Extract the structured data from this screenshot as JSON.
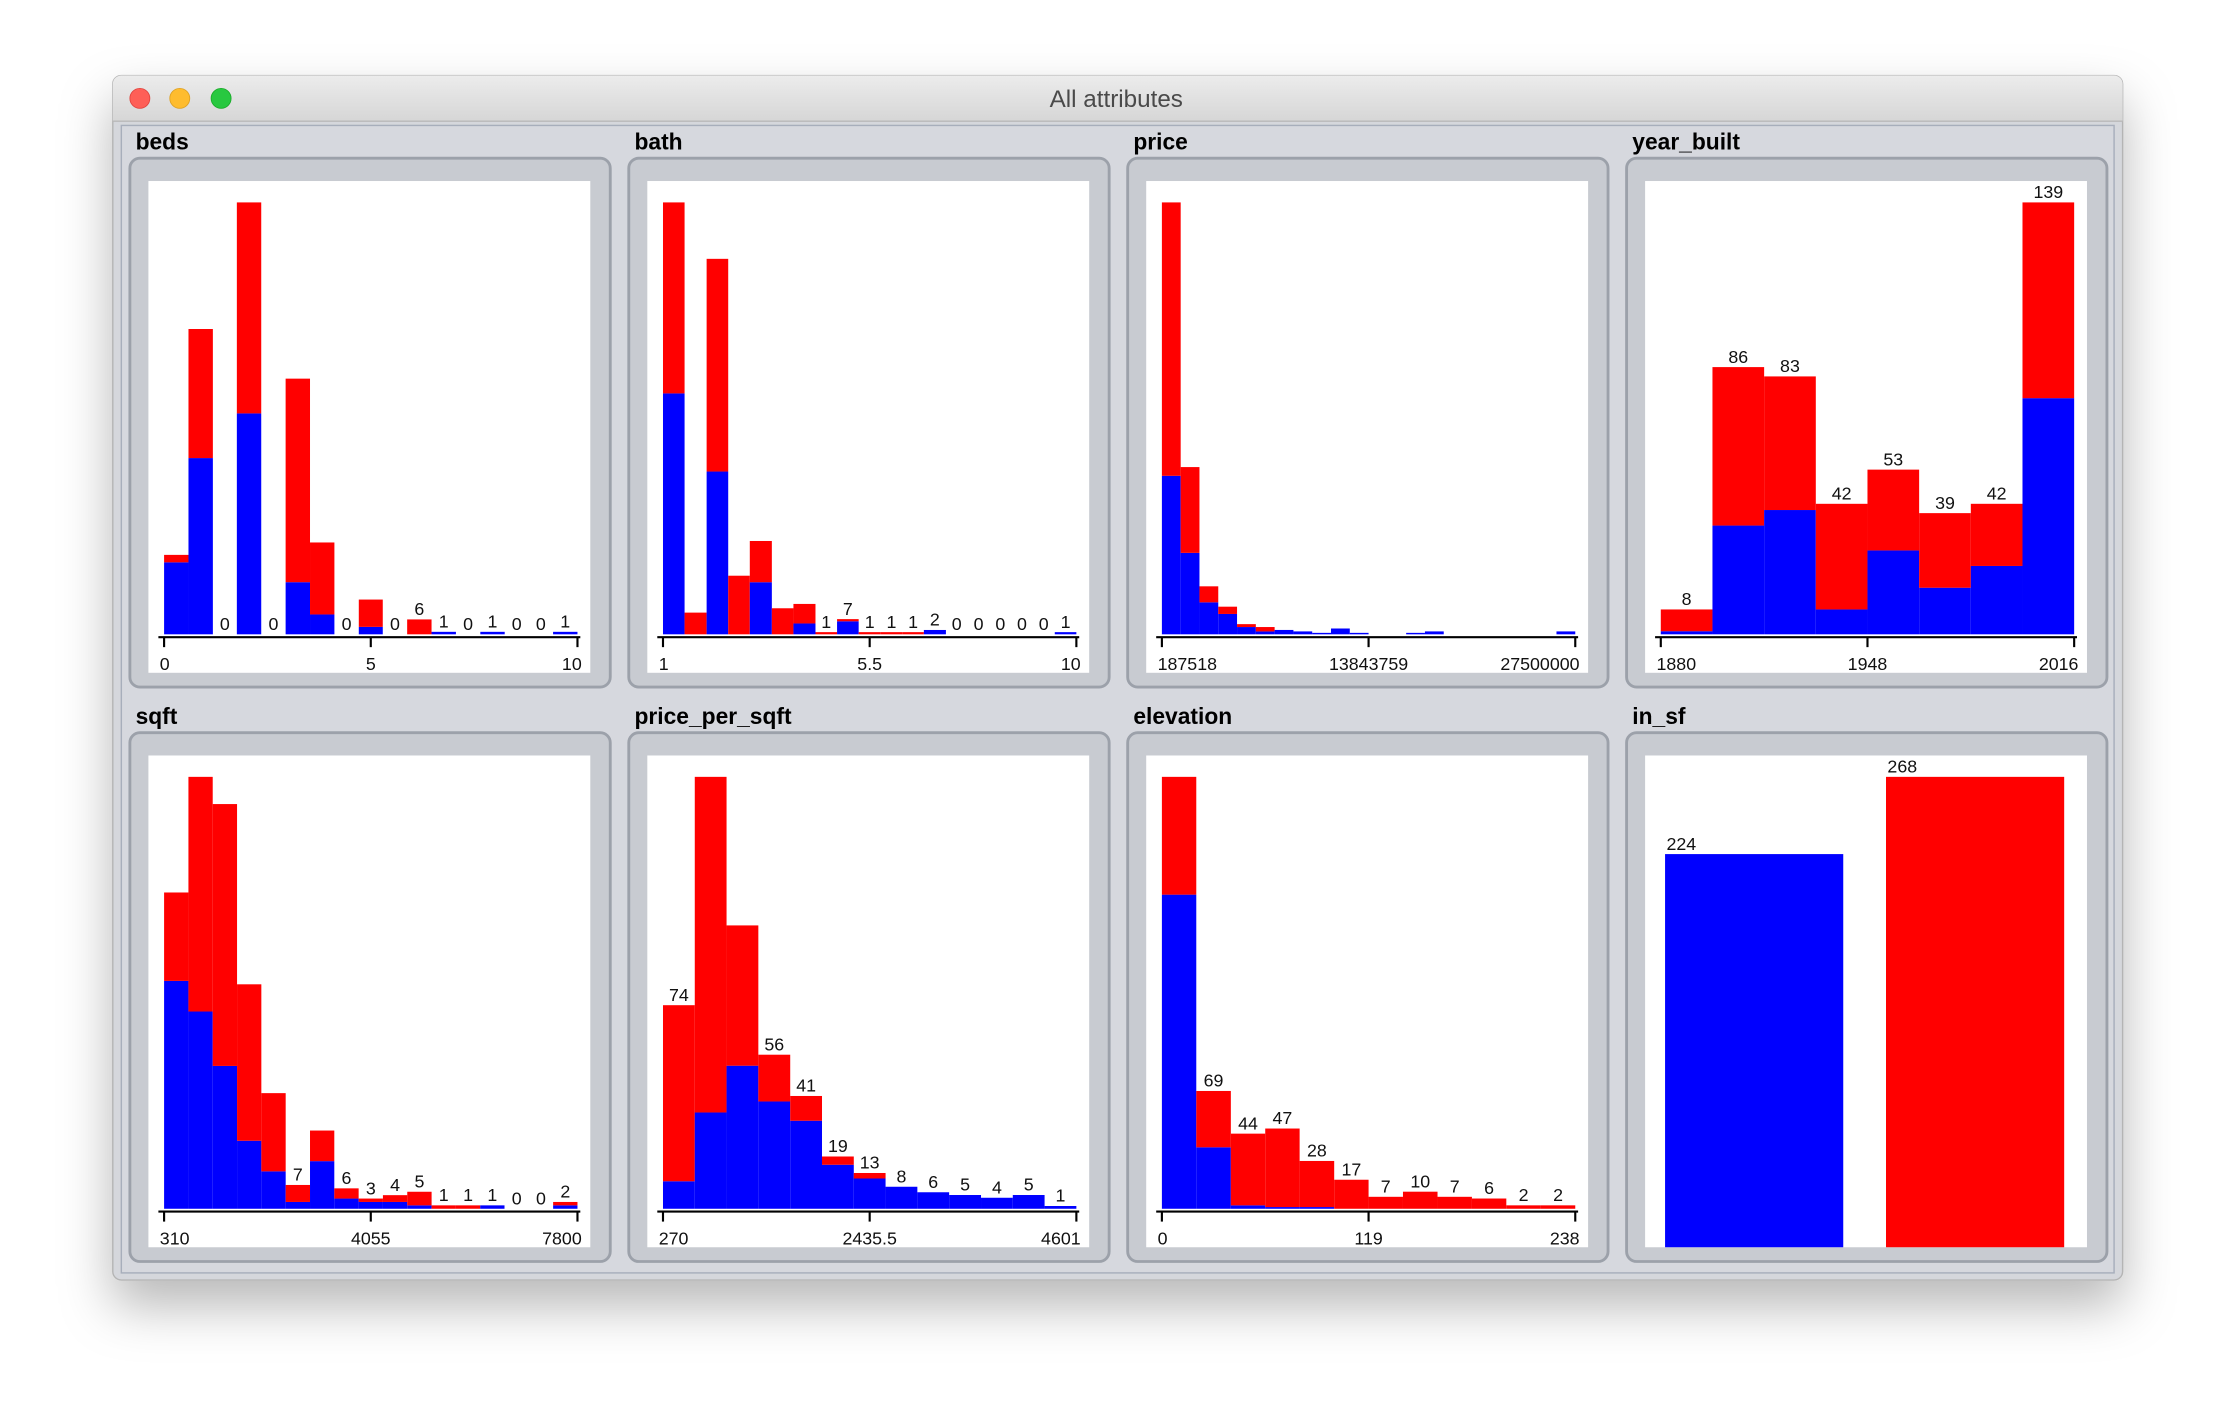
{
  "window": {
    "title": "All attributes"
  },
  "chart_data": [
    {
      "type": "histogram",
      "title": "beds",
      "bins": [
        0,
        0.59,
        1.18,
        1.76,
        2.35,
        2.94,
        3.53,
        4.12,
        4.71,
        5.29,
        5.88,
        6.47,
        7.06,
        7.65,
        8.24,
        8.82,
        9.41,
        10
      ],
      "series": [
        {
          "color": "#0000ff",
          "values": [
            29,
            71,
            0,
            89,
            0,
            21,
            8,
            0,
            3,
            0,
            0,
            1,
            0,
            1,
            0,
            0,
            1
          ]
        },
        {
          "color": "#ff0000",
          "values": [
            3,
            52,
            0,
            85,
            0,
            82,
            29,
            0,
            11,
            0,
            6,
            0,
            0,
            0,
            0,
            0,
            0
          ]
        }
      ],
      "bar_labels": [
        null,
        null,
        0,
        null,
        0,
        null,
        null,
        0,
        null,
        0,
        6,
        1,
        0,
        1,
        0,
        0,
        1
      ],
      "xlim": [
        0,
        10
      ],
      "xticks": [
        0,
        5,
        10
      ]
    },
    {
      "type": "histogram",
      "title": "bath",
      "bins": [
        1,
        1.47,
        1.95,
        2.42,
        2.89,
        3.37,
        3.84,
        4.32,
        4.79,
        5.26,
        5.74,
        6.21,
        6.68,
        7.16,
        7.63,
        8.11,
        8.58,
        9.05,
        9.53,
        10
      ],
      "series": [
        {
          "color": "#0000ff",
          "values": [
            111,
            0,
            75,
            0,
            24,
            0,
            5,
            0,
            6,
            0,
            0,
            0,
            2,
            0,
            0,
            0,
            0,
            0,
            1
          ]
        },
        {
          "color": "#ff0000",
          "values": [
            88,
            10,
            98,
            27,
            19,
            12,
            9,
            1,
            1,
            1,
            1,
            1,
            0,
            0,
            0,
            0,
            0,
            0,
            0
          ]
        }
      ],
      "bar_labels": [
        null,
        null,
        null,
        null,
        null,
        null,
        null,
        1,
        7,
        1,
        1,
        1,
        2,
        0,
        0,
        0,
        0,
        0,
        1
      ],
      "xlim": [
        1,
        10
      ],
      "xticks": [
        1,
        5.5,
        10
      ]
    },
    {
      "type": "histogram",
      "title": "price",
      "bins": [
        187518,
        1429000,
        2670000,
        3912000,
        5153000,
        6395000,
        7636000,
        8878000,
        10119000,
        11361000,
        12602000,
        13844000,
        15085000,
        16327000,
        17568000,
        18810000,
        20051000,
        21293000,
        22534000,
        23776000,
        25017000,
        26259000,
        27500000
      ],
      "series": [
        {
          "color": "#0000ff",
          "values": [
            109,
            56,
            22,
            14,
            5,
            2,
            3,
            2,
            1,
            4,
            1,
            0,
            0,
            1,
            2,
            0,
            0,
            0,
            0,
            0,
            0,
            2
          ]
        },
        {
          "color": "#ff0000",
          "values": [
            188,
            59,
            11,
            5,
            2,
            3,
            0,
            0,
            0,
            0,
            0,
            0,
            0,
            0,
            0,
            0,
            0,
            0,
            0,
            0,
            0,
            0
          ]
        }
      ],
      "xlim": [
        187518,
        27500000
      ],
      "xticks": [
        187518,
        13843759,
        27500000
      ]
    },
    {
      "type": "histogram",
      "title": "year_built",
      "bins": [
        1880,
        1897,
        1914,
        1931,
        1948,
        1965,
        1982,
        1999,
        2016
      ],
      "series": [
        {
          "color": "#0000ff",
          "values": [
            1,
            35,
            40,
            8,
            27,
            15,
            22,
            76
          ]
        },
        {
          "color": "#ff0000",
          "values": [
            7,
            51,
            43,
            34,
            26,
            24,
            20,
            63
          ]
        }
      ],
      "bar_labels": [
        8,
        86,
        83,
        42,
        53,
        39,
        42,
        139
      ],
      "xlim": [
        1880,
        2016
      ],
      "xticks": [
        1880,
        1948,
        2016
      ]
    },
    {
      "type": "histogram",
      "title": "sqft",
      "bins": [
        310,
        751,
        1191,
        1632,
        2072,
        2513,
        2954,
        3394,
        3835,
        4275,
        4716,
        5157,
        5597,
        6038,
        6478,
        6919,
        7359,
        7800
      ],
      "series": [
        {
          "color": "#0000ff",
          "values": [
            67,
            58,
            42,
            20,
            11,
            2,
            14,
            3,
            2,
            2,
            1,
            0,
            0,
            1,
            0,
            0,
            1
          ]
        },
        {
          "color": "#ff0000",
          "values": [
            26,
            69,
            77,
            46,
            23,
            5,
            9,
            3,
            1,
            2,
            4,
            1,
            1,
            0,
            0,
            0,
            1
          ]
        }
      ],
      "bar_labels": [
        null,
        null,
        null,
        null,
        null,
        7,
        null,
        6,
        3,
        4,
        5,
        1,
        1,
        1,
        0,
        0,
        2
      ],
      "xlim": [
        310,
        7800
      ],
      "xticks": [
        310,
        4055,
        7800
      ]
    },
    {
      "type": "histogram",
      "title": "price_per_sqft",
      "bins": [
        270,
        603,
        936,
        1269,
        1603,
        1936,
        2269,
        2602,
        2935,
        3268,
        3602,
        3935,
        4268,
        4601
      ],
      "series": [
        {
          "color": "#0000ff",
          "values": [
            10,
            35,
            52,
            39,
            32,
            16,
            11,
            8,
            6,
            5,
            4,
            5,
            1
          ]
        },
        {
          "color": "#ff0000",
          "values": [
            64,
            122,
            51,
            17,
            9,
            3,
            2,
            0,
            0,
            0,
            0,
            0,
            0
          ]
        }
      ],
      "bar_labels": [
        74,
        null,
        null,
        56,
        41,
        19,
        13,
        8,
        6,
        5,
        4,
        5,
        1
      ],
      "xlim": [
        270,
        4601
      ],
      "xticks": [
        270,
        2435.5,
        4601
      ]
    },
    {
      "type": "histogram",
      "title": "elevation",
      "bins": [
        0,
        19.8,
        39.7,
        59.5,
        79.3,
        99.2,
        119,
        138.8,
        158.7,
        178.5,
        198.3,
        218.2,
        238
      ],
      "series": [
        {
          "color": "#0000ff",
          "values": [
            184,
            36,
            2,
            1,
            1,
            0,
            0,
            0,
            0,
            0,
            0,
            0
          ]
        },
        {
          "color": "#ff0000",
          "values": [
            69,
            33,
            42,
            46,
            27,
            17,
            7,
            10,
            7,
            6,
            2,
            2
          ]
        }
      ],
      "bar_labels": [
        null,
        69,
        44,
        47,
        28,
        17,
        7,
        10,
        7,
        6,
        2,
        2
      ],
      "xlim": [
        0,
        238
      ],
      "xticks": [
        0,
        119,
        238
      ]
    },
    {
      "type": "bar",
      "title": "in_sf",
      "categories": [
        null,
        null
      ],
      "values": [
        224,
        268
      ],
      "colors": [
        "#0000ff",
        "#ff0000"
      ]
    }
  ]
}
